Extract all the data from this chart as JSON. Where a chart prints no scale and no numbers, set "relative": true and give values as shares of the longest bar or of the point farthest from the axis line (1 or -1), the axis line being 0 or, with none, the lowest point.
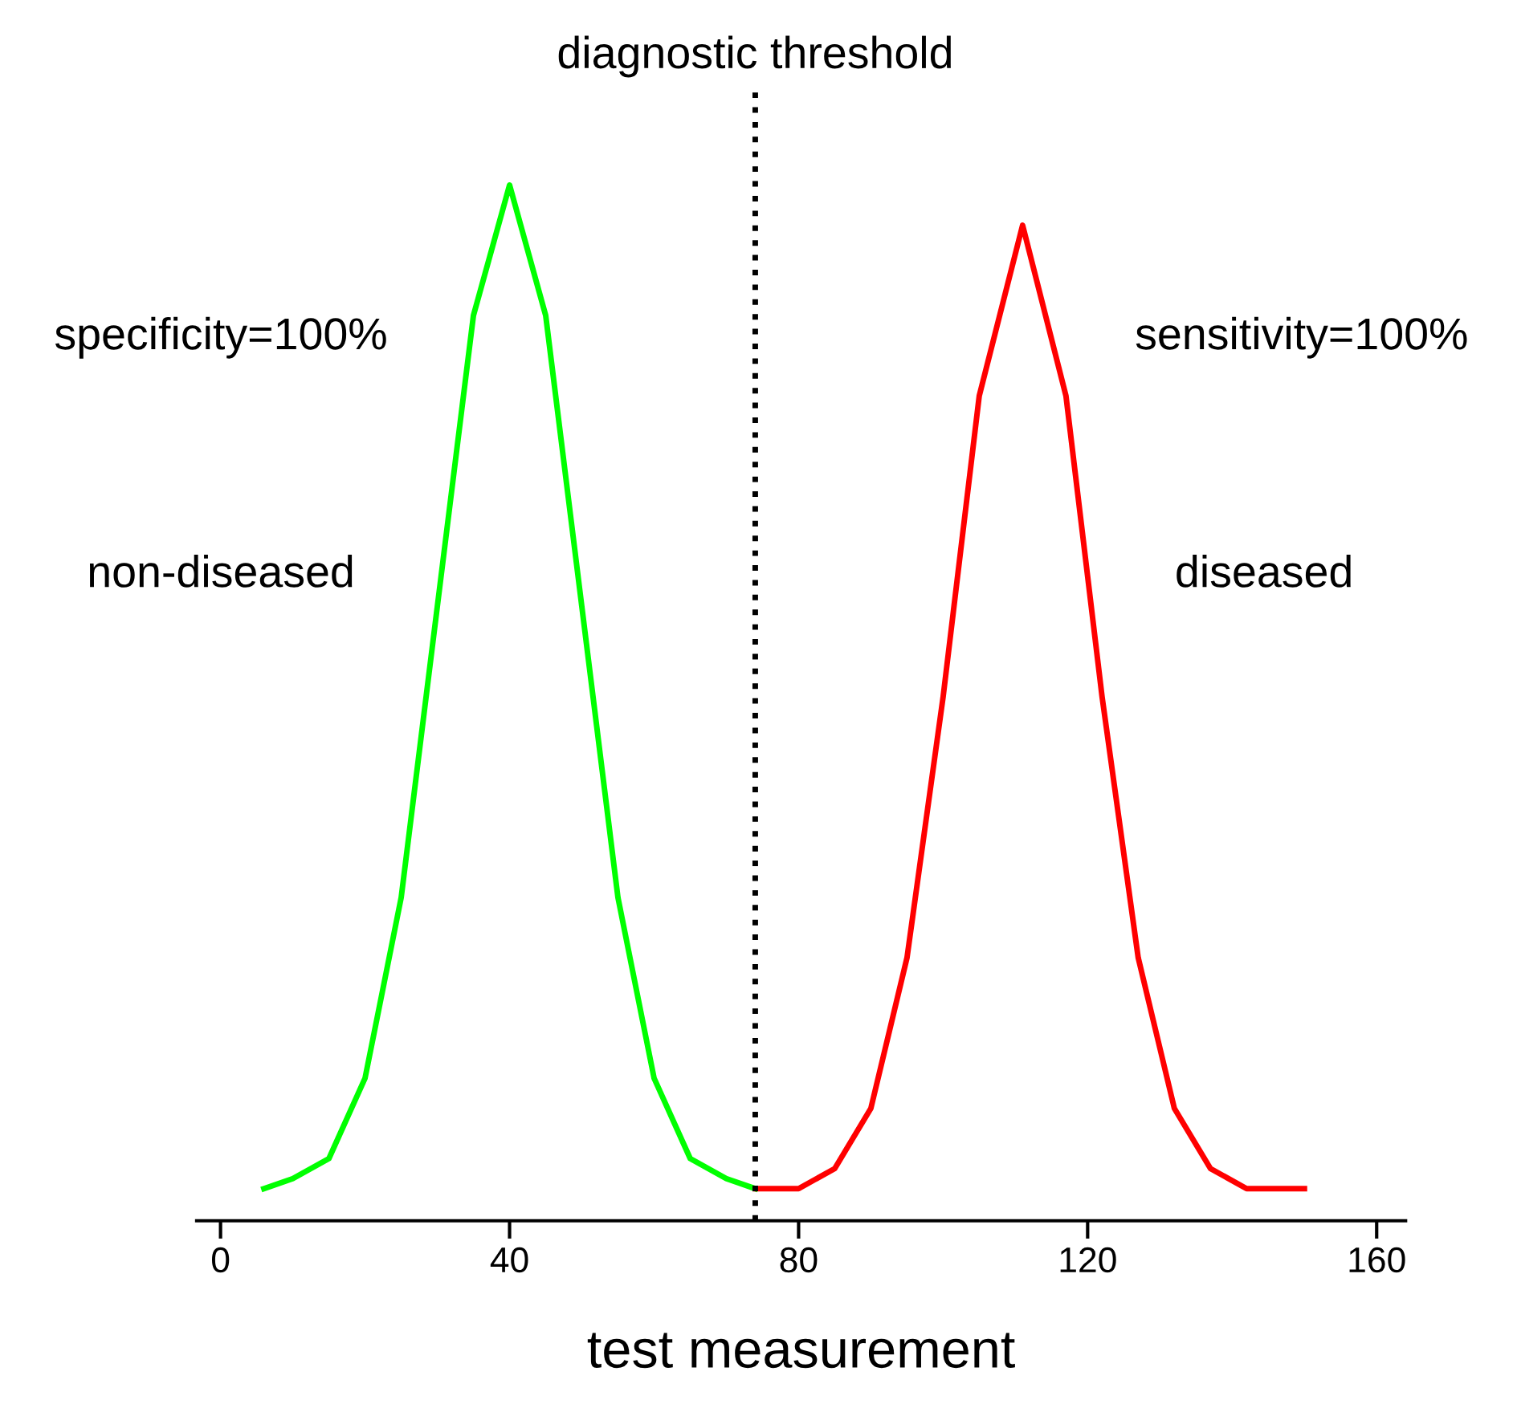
{
  "chart_data": {
    "type": "line",
    "relative": true,
    "xlabel": "test measurement",
    "xlim": [
      -3.3,
      164
    ],
    "xticks": [
      0,
      40,
      80,
      120,
      160
    ],
    "grid": false,
    "legend": false,
    "marker": "none",
    "line_style": "solid",
    "series": [
      {
        "name": "non-diseased",
        "color": "#00ff00",
        "x": [
          6,
          10,
          15,
          20,
          25,
          30,
          35,
          40,
          45,
          50,
          55,
          60,
          65,
          70,
          74
        ],
        "values": [
          0.0,
          0.01,
          0.03,
          0.11,
          0.29,
          0.58,
          0.87,
          1,
          0.87,
          0.58,
          0.29,
          0.11,
          0.03,
          0.01,
          0.0
        ]
      },
      {
        "name": "diseased",
        "color": "#ff0000",
        "x": [
          74,
          80,
          85,
          90,
          95,
          100,
          105,
          111,
          117,
          122,
          127,
          132,
          137,
          142,
          150
        ],
        "values": [
          0.0,
          0.0,
          0.02,
          0.08,
          0.23,
          0.49,
          0.79,
          0.96,
          0.79,
          0.49,
          0.23,
          0.08,
          0.02,
          0.0,
          0.0
        ]
      }
    ],
    "ref_lines": [
      {
        "axis": "x",
        "value": 74,
        "label": "diagnostic threshold",
        "color": "#000000",
        "line_style": "dotted"
      }
    ],
    "annotations": [
      "specificity=100%",
      "sensitivity=100%"
    ]
  }
}
